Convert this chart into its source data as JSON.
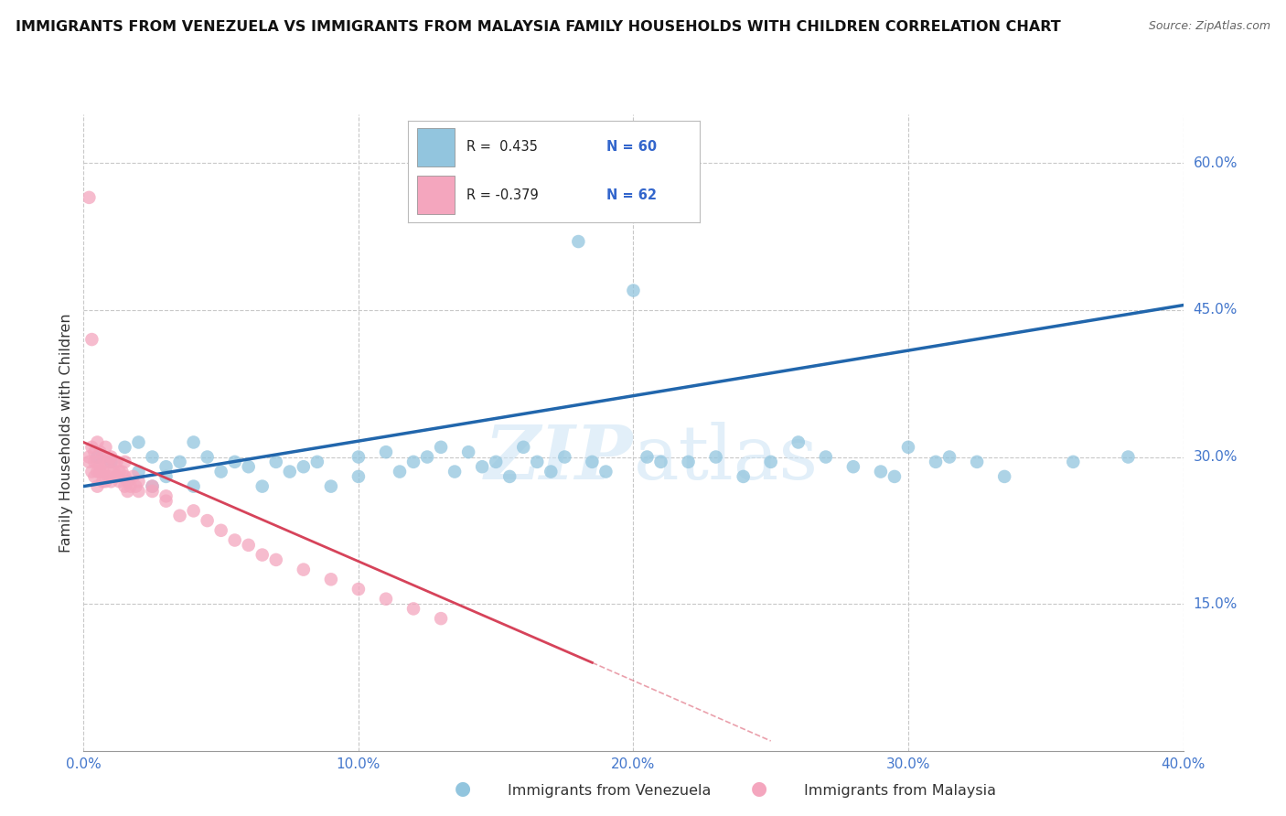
{
  "title": "IMMIGRANTS FROM VENEZUELA VS IMMIGRANTS FROM MALAYSIA FAMILY HOUSEHOLDS WITH CHILDREN CORRELATION CHART",
  "source": "Source: ZipAtlas.com",
  "xlabel_bottom": "Immigrants from Venezuela",
  "xlabel_bottom2": "Immigrants from Malaysia",
  "ylabel": "Family Households with Children",
  "xlim": [
    0.0,
    0.4
  ],
  "ylim": [
    0.0,
    0.65
  ],
  "xticks": [
    0.0,
    0.1,
    0.2,
    0.3,
    0.4
  ],
  "yticks": [
    0.15,
    0.3,
    0.45,
    0.6
  ],
  "xtick_labels": [
    "0.0%",
    "10.0%",
    "20.0%",
    "30.0%",
    "40.0%"
  ],
  "ytick_labels": [
    "15.0%",
    "30.0%",
    "45.0%",
    "60.0%"
  ],
  "legend_R_blue": "R =  0.435",
  "legend_N_blue": "N = 60",
  "legend_R_pink": "R = -0.379",
  "legend_N_pink": "N = 62",
  "blue_color": "#92c5de",
  "pink_color": "#f4a6be",
  "blue_line_color": "#2166ac",
  "pink_line_color": "#d6435a",
  "watermark_ZIP": "ZIP",
  "watermark_atlas": "atlas",
  "grid_color": "#c8c8c8",
  "bg_color": "#ffffff",
  "blue_scatter_x": [
    0.005,
    0.01,
    0.015,
    0.02,
    0.02,
    0.025,
    0.025,
    0.03,
    0.03,
    0.035,
    0.04,
    0.04,
    0.045,
    0.05,
    0.055,
    0.06,
    0.065,
    0.07,
    0.075,
    0.08,
    0.085,
    0.09,
    0.1,
    0.1,
    0.11,
    0.115,
    0.12,
    0.125,
    0.13,
    0.135,
    0.14,
    0.145,
    0.15,
    0.155,
    0.16,
    0.165,
    0.17,
    0.175,
    0.18,
    0.185,
    0.19,
    0.2,
    0.205,
    0.21,
    0.22,
    0.23,
    0.24,
    0.25,
    0.26,
    0.27,
    0.28,
    0.29,
    0.295,
    0.3,
    0.31,
    0.315,
    0.325,
    0.335,
    0.36,
    0.38
  ],
  "blue_scatter_y": [
    0.3,
    0.295,
    0.31,
    0.285,
    0.315,
    0.27,
    0.3,
    0.29,
    0.28,
    0.295,
    0.315,
    0.27,
    0.3,
    0.285,
    0.295,
    0.29,
    0.27,
    0.295,
    0.285,
    0.29,
    0.295,
    0.27,
    0.3,
    0.28,
    0.305,
    0.285,
    0.295,
    0.3,
    0.31,
    0.285,
    0.305,
    0.29,
    0.295,
    0.28,
    0.31,
    0.295,
    0.285,
    0.3,
    0.52,
    0.295,
    0.285,
    0.47,
    0.3,
    0.295,
    0.295,
    0.3,
    0.28,
    0.295,
    0.315,
    0.3,
    0.29,
    0.285,
    0.28,
    0.31,
    0.295,
    0.3,
    0.295,
    0.28,
    0.295,
    0.3
  ],
  "pink_scatter_x": [
    0.002,
    0.002,
    0.003,
    0.003,
    0.004,
    0.004,
    0.004,
    0.005,
    0.005,
    0.005,
    0.005,
    0.006,
    0.006,
    0.006,
    0.007,
    0.007,
    0.007,
    0.008,
    0.008,
    0.008,
    0.009,
    0.009,
    0.01,
    0.01,
    0.01,
    0.011,
    0.011,
    0.012,
    0.012,
    0.013,
    0.013,
    0.014,
    0.015,
    0.015,
    0.015,
    0.016,
    0.016,
    0.017,
    0.018,
    0.019,
    0.02,
    0.02,
    0.025,
    0.025,
    0.03,
    0.03,
    0.035,
    0.04,
    0.045,
    0.05,
    0.055,
    0.06,
    0.065,
    0.07,
    0.08,
    0.09,
    0.1,
    0.11,
    0.12,
    0.13,
    0.002,
    0.003
  ],
  "pink_scatter_y": [
    0.3,
    0.295,
    0.285,
    0.31,
    0.295,
    0.305,
    0.28,
    0.315,
    0.295,
    0.285,
    0.27,
    0.305,
    0.29,
    0.285,
    0.3,
    0.285,
    0.275,
    0.295,
    0.31,
    0.275,
    0.295,
    0.28,
    0.3,
    0.285,
    0.275,
    0.285,
    0.295,
    0.28,
    0.295,
    0.285,
    0.275,
    0.285,
    0.295,
    0.28,
    0.27,
    0.275,
    0.265,
    0.27,
    0.28,
    0.27,
    0.275,
    0.265,
    0.27,
    0.265,
    0.26,
    0.255,
    0.24,
    0.245,
    0.235,
    0.225,
    0.215,
    0.21,
    0.2,
    0.195,
    0.185,
    0.175,
    0.165,
    0.155,
    0.145,
    0.135,
    0.565,
    0.42
  ],
  "blue_line_x0": 0.0,
  "blue_line_y0": 0.27,
  "blue_line_x1": 0.4,
  "blue_line_y1": 0.455,
  "pink_line_x0": 0.0,
  "pink_line_y0": 0.315,
  "pink_line_x1": 0.185,
  "pink_line_y1": 0.09,
  "pink_line_dashed_x0": 0.185,
  "pink_line_dashed_y0": 0.09,
  "pink_line_dashed_x1": 0.25,
  "pink_line_dashed_y1": 0.01
}
